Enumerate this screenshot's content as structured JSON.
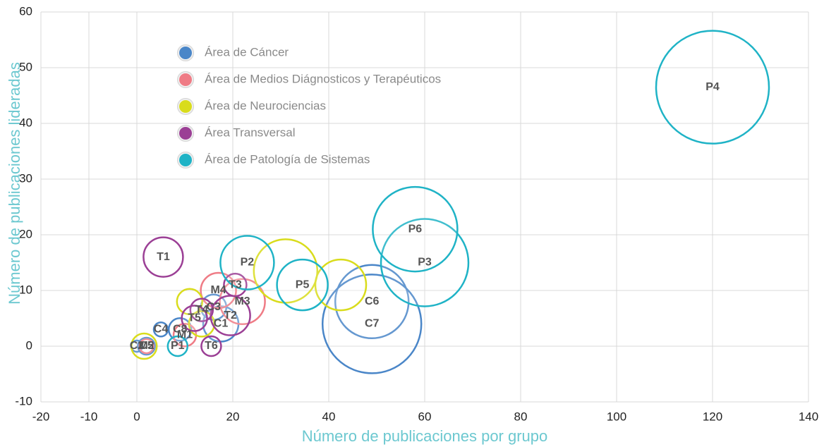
{
  "chart_data": {
    "type": "bubble",
    "x_label": "Número de publicaciones por grupo",
    "y_label": "Número de publicaciones lideradas",
    "xlim": [
      -20,
      140
    ],
    "xticks": [
      -20,
      -10,
      0,
      20,
      40,
      60,
      80,
      100,
      120,
      140
    ],
    "ylim": [
      -10,
      60
    ],
    "yticks": [
      -10,
      0,
      10,
      20,
      30,
      40,
      50,
      60
    ],
    "grid": true,
    "legend": "upper left",
    "series": [
      {
        "name": "Área de Cáncer",
        "color": "#4a86c8",
        "labels": [
          "C1",
          "C2",
          "C3",
          "C4",
          "C5",
          "C6",
          "C7",
          "C8"
        ],
        "x": [
          17.5,
          0,
          16,
          5,
          2,
          49,
          49,
          9
        ],
        "values": [
          4,
          0,
          7,
          3,
          0,
          8,
          4,
          3
        ],
        "sizes": [
          25,
          8,
          18,
          10,
          12,
          52,
          70,
          16
        ]
      },
      {
        "name": "Área de Medios Diágnosticos y Terapéuticos",
        "color": "#ef7b85",
        "labels": [
          "M1",
          "M2",
          "M3",
          "M4"
        ],
        "x": [
          10,
          2,
          22,
          17
        ],
        "values": [
          2,
          0,
          8,
          10
        ],
        "sizes": [
          16,
          10,
          32,
          25
        ]
      },
      {
        "name": "Área de Neurociencias",
        "color": "#d9dc1c",
        "x": [
          31,
          42.5,
          11,
          1.5,
          13.5
        ],
        "values": [
          13.5,
          11,
          8,
          0,
          4
        ],
        "sizes": [
          45,
          36,
          18,
          18,
          18
        ]
      },
      {
        "name": "Área Transversal",
        "color": "#9b3f95",
        "labels": [
          "T1",
          "T2",
          "T3",
          "T4",
          "T5",
          "T6"
        ],
        "x": [
          5.5,
          19.5,
          20.5,
          13.5,
          12,
          15.5
        ],
        "values": [
          16,
          5.5,
          11,
          6.5,
          5,
          0
        ],
        "sizes": [
          28,
          28,
          16,
          16,
          18,
          14
        ]
      },
      {
        "name": "Área de Patología de Sistemas",
        "color": "#1fb3c6",
        "labels": [
          "P1",
          "P2",
          "P3",
          "P4",
          "P5",
          "P6"
        ],
        "x": [
          8.5,
          23,
          60,
          120,
          34.5,
          58
        ],
        "values": [
          0,
          15,
          15,
          46.5,
          11,
          21
        ],
        "sizes": [
          14,
          38,
          62,
          80,
          36,
          60
        ]
      }
    ]
  }
}
